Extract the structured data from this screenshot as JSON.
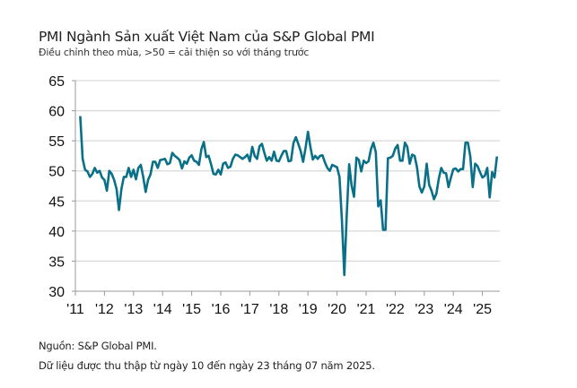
{
  "title": "PMI Ngành Sản xuất Việt Nam của S&P Global PMI",
  "subtitle": "Điều chỉnh theo mùa, >50 = cải thiện so với tháng trước",
  "footer": {
    "source": "Nguồn: S&P Global PMI.",
    "note": "Dữ liệu được thu thập từ ngày 10 đến ngày 23 tháng 07 năm 2025."
  },
  "chart_data": {
    "type": "line",
    "title": "PMI Ngành Sản xuất Việt Nam của S&P Global PMI",
    "xlabel": "",
    "ylabel": "",
    "ylim": [
      30,
      65
    ],
    "yticks": [
      "30",
      "35",
      "40",
      "45",
      "50",
      "55",
      "60",
      "65"
    ],
    "xticks": [
      "'11",
      "'12",
      "'13",
      "'14",
      "'15",
      "'16",
      "'17",
      "'18",
      "'19",
      "'20",
      "'21",
      "'22",
      "'23",
      "'24",
      "'25"
    ],
    "grid": true,
    "line_color": "#0a7088",
    "start": "2011-03",
    "end": "2025-07",
    "frequency": "monthly",
    "series": [
      {
        "values": [
          59.1,
          52.0,
          50.2,
          49.9,
          49.0,
          49.5,
          50.5,
          49.7,
          50.0,
          48.9,
          48.5,
          46.7,
          50.0,
          49.5,
          48.5,
          47.0,
          43.5,
          47.0,
          49.0,
          49.0,
          50.5,
          49.0,
          50.2,
          48.6,
          50.5,
          51.0,
          49.0,
          46.5,
          48.5,
          49.4,
          51.5,
          51.5,
          50.5,
          51.8,
          51.9,
          52.0,
          51.1,
          51.3,
          53.0,
          52.5,
          52.2,
          51.8,
          50.4,
          51.6,
          51.2,
          52.2,
          52.6,
          51.7,
          51.5,
          51.0,
          53.6,
          54.8,
          52.3,
          52.5,
          51.1,
          49.5,
          49.4,
          50.2,
          49.4,
          51.2,
          51.4,
          50.5,
          50.7,
          52.0,
          52.7,
          52.6,
          52.3,
          52.0,
          52.3,
          52.7,
          51.6,
          54.0,
          52.5,
          52.0,
          54.1,
          54.5,
          53.0,
          51.7,
          52.3,
          51.7,
          53.2,
          51.7,
          51.6,
          52.5,
          53.3,
          53.3,
          51.6,
          51.7,
          54.6,
          55.6,
          54.5,
          53.3,
          51.5,
          53.8,
          56.5,
          54.0,
          51.9,
          52.5,
          52.0,
          52.5,
          52.6,
          51.4,
          50.5,
          50.0,
          51.0,
          50.8,
          50.6,
          49.0,
          41.9,
          32.7,
          42.7,
          51.1,
          47.6,
          45.7,
          52.2,
          51.8,
          49.9,
          51.7,
          51.3,
          51.6,
          53.6,
          54.7,
          53.1,
          44.1,
          45.1,
          40.2,
          40.2,
          52.1,
          52.2,
          52.5,
          53.7,
          54.3,
          51.7,
          51.7,
          54.7,
          54.0,
          51.2,
          52.7,
          52.5,
          50.6,
          47.4,
          46.4,
          47.4,
          51.2,
          47.7,
          46.7,
          45.3,
          46.2,
          48.7,
          50.5,
          49.7,
          49.6,
          47.3,
          48.9,
          50.3,
          50.4,
          49.9,
          50.3,
          50.3,
          54.7,
          54.7,
          52.4,
          47.3,
          51.2,
          50.8,
          49.8,
          48.9,
          49.2,
          50.5,
          45.6,
          49.8,
          48.9,
          52.4
        ]
      }
    ]
  }
}
